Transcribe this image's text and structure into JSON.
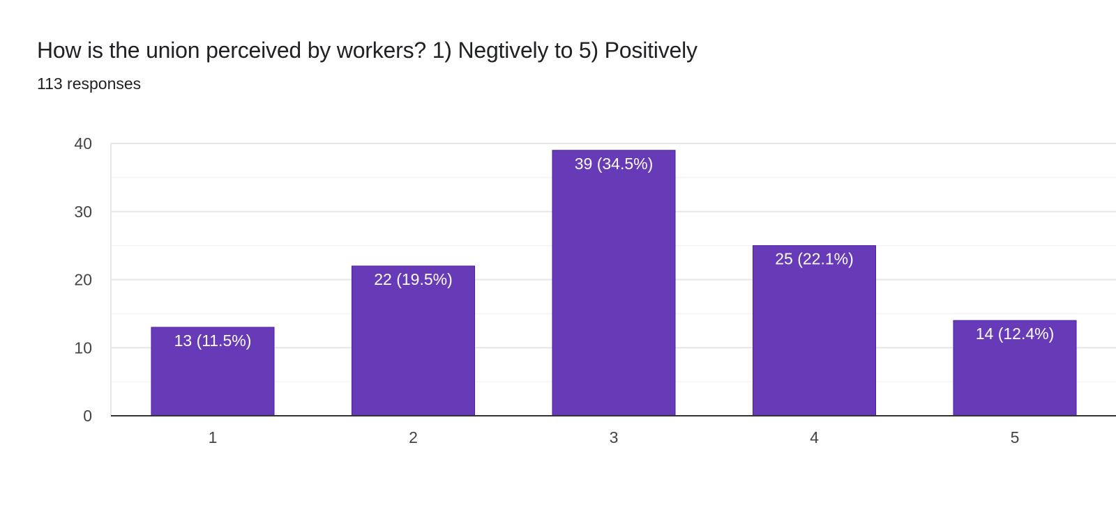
{
  "question": {
    "title": "How is the union perceived by workers? 1) Negtively to 5) Positively",
    "responses": "113 responses"
  },
  "chart_data": {
    "type": "bar",
    "categories": [
      "1",
      "2",
      "3",
      "4",
      "5"
    ],
    "values": [
      13,
      22,
      39,
      25,
      14
    ],
    "data_labels": [
      "13 (11.5%)",
      "22 (19.5%)",
      "39 (34.5%)",
      "25 (22.1%)",
      "14 (12.4%)"
    ],
    "ylim": [
      0,
      40
    ],
    "yticks": [
      0,
      10,
      20,
      30,
      40
    ],
    "grid": true,
    "legend": "none",
    "bar_color": "#673ab7"
  }
}
